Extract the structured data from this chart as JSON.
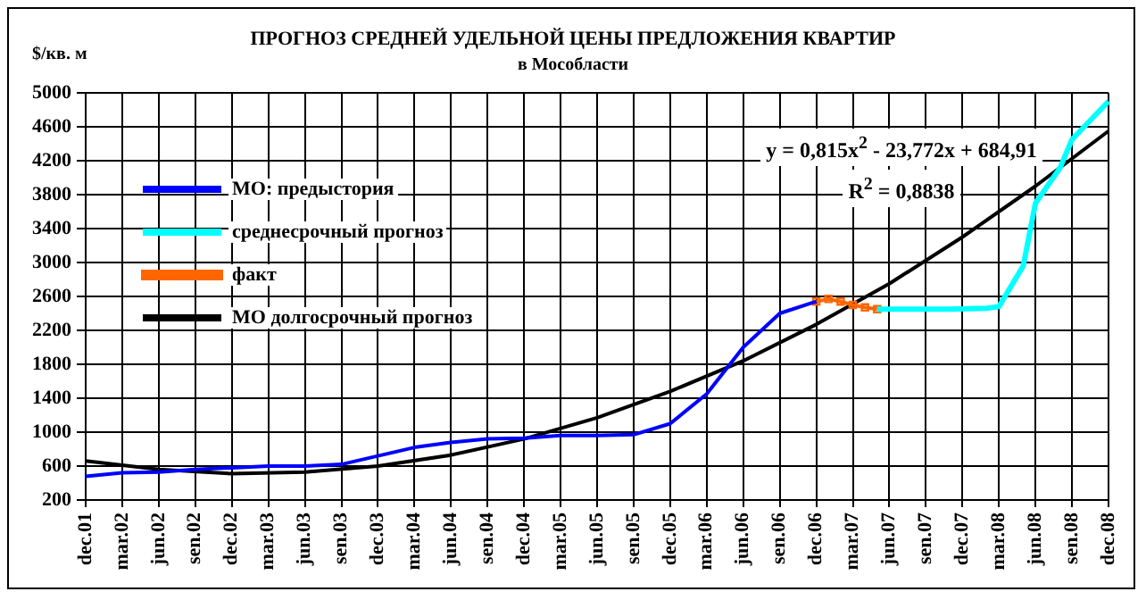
{
  "chart_data": {
    "type": "line",
    "title": "ПРОГНОЗ СРЕДНЕЙ УДЕЛЬНОЙ ЦЕНЫ ПРЕДЛОЖЕНИЯ КВАРТИР",
    "subtitle": "в Мособласти",
    "ylabel": "$/кв. м",
    "categories": [
      "dec.01",
      null,
      null,
      "mar.02",
      null,
      null,
      "jun.02",
      null,
      null,
      "sen.02",
      null,
      null,
      "dec.02",
      null,
      null,
      "mar.03",
      null,
      null,
      "jun.03",
      null,
      null,
      "sen.03",
      null,
      null,
      "dec.03",
      null,
      null,
      "mar.04",
      null,
      null,
      "jun.04",
      null,
      null,
      "sen.04",
      null,
      null,
      "dec.04",
      null,
      null,
      "mar.05",
      null,
      null,
      "jun.05",
      null,
      null,
      "sen.05",
      null,
      null,
      "dec.05",
      null,
      null,
      "mar.06",
      null,
      null,
      "jun.06",
      null,
      null,
      "sen.06",
      null,
      null,
      "dec.06",
      null,
      null,
      "mar.07",
      null,
      null,
      "jun.07",
      null,
      null,
      "sen.07",
      null,
      null,
      "dec.07",
      null,
      null,
      "mar.08",
      null,
      null,
      "jun.08",
      null,
      null,
      "sen.08",
      null,
      null,
      "dec.08"
    ],
    "ylim": [
      200,
      5000
    ],
    "yticks": [
      200,
      600,
      1000,
      1400,
      1800,
      2200,
      2600,
      3000,
      3400,
      3800,
      4200,
      4600,
      5000
    ],
    "grid": true,
    "legend": "top left",
    "series": [
      {
        "name": "МО: предыстория",
        "color": "#0000ff",
        "marker": "none",
        "values": [
          480,
          null,
          null,
          520,
          null,
          null,
          530,
          null,
          null,
          560,
          null,
          null,
          580,
          null,
          null,
          600,
          null,
          null,
          600,
          null,
          null,
          620,
          null,
          null,
          720,
          null,
          null,
          820,
          null,
          null,
          880,
          null,
          null,
          920,
          null,
          null,
          930,
          null,
          null,
          960,
          null,
          null,
          960,
          null,
          null,
          970,
          null,
          null,
          1100,
          null,
          null,
          1450,
          null,
          null,
          2000,
          null,
          null,
          2400,
          null,
          null,
          2540,
          null,
          null,
          null,
          null,
          null,
          null,
          null,
          null,
          null,
          null,
          null,
          null,
          null,
          null,
          null,
          null,
          null,
          null,
          null,
          null,
          null,
          null,
          null,
          null
        ]
      },
      {
        "name": "среднесрочный прогноз",
        "color": "#00ffff",
        "marker": "none",
        "values": [
          null,
          null,
          null,
          null,
          null,
          null,
          null,
          null,
          null,
          null,
          null,
          null,
          null,
          null,
          null,
          null,
          null,
          null,
          null,
          null,
          null,
          null,
          null,
          null,
          null,
          null,
          null,
          null,
          null,
          null,
          null,
          null,
          null,
          null,
          null,
          null,
          null,
          null,
          null,
          null,
          null,
          null,
          null,
          null,
          null,
          null,
          null,
          null,
          null,
          null,
          null,
          null,
          null,
          null,
          null,
          null,
          null,
          null,
          null,
          null,
          null,
          null,
          null,
          null,
          null,
          2450,
          null,
          null,
          2450,
          null,
          null,
          2450,
          null,
          null,
          2460,
          2480,
          null,
          2960,
          3700,
          null,
          4110,
          4450,
          null,
          null,
          4900
        ]
      },
      {
        "name": "факт",
        "color": "#ff6600",
        "marker": "square",
        "values": [
          null,
          null,
          null,
          null,
          null,
          null,
          null,
          null,
          null,
          null,
          null,
          null,
          null,
          null,
          null,
          null,
          null,
          null,
          null,
          null,
          null,
          null,
          null,
          null,
          null,
          null,
          null,
          null,
          null,
          null,
          null,
          null,
          null,
          null,
          null,
          null,
          null,
          null,
          null,
          null,
          null,
          null,
          null,
          null,
          null,
          null,
          null,
          null,
          null,
          null,
          null,
          null,
          null,
          null,
          null,
          null,
          null,
          null,
          null,
          null,
          2540,
          2570,
          2540,
          2500,
          2470,
          2450,
          null,
          null,
          null,
          null,
          null,
          null,
          null,
          null,
          null,
          null,
          null,
          null,
          null,
          null,
          null,
          null,
          null,
          null,
          null
        ]
      },
      {
        "name": "МО долгосрочный прогноз",
        "color": "#000000",
        "marker": "none",
        "values": [
          660,
          null,
          null,
          null,
          null,
          null,
          560,
          null,
          null,
          null,
          null,
          null,
          510,
          null,
          null,
          null,
          null,
          null,
          530,
          null,
          null,
          null,
          null,
          null,
          600,
          null,
          null,
          null,
          null,
          null,
          730,
          null,
          null,
          null,
          null,
          null,
          920,
          null,
          null,
          null,
          null,
          null,
          1170,
          null,
          null,
          null,
          null,
          null,
          1480,
          null,
          null,
          null,
          null,
          null,
          1840,
          null,
          null,
          null,
          null,
          null,
          2270,
          null,
          null,
          null,
          null,
          null,
          2750,
          null,
          null,
          null,
          null,
          null,
          3300,
          null,
          null,
          null,
          null,
          null,
          3900,
          null,
          null,
          null,
          null,
          null,
          4550
        ]
      }
    ],
    "annotations": [
      "y = 0,815x$^{2}$ - 23,772x + 684,91",
      "R$^{2}$ = 0,8838"
    ]
  }
}
